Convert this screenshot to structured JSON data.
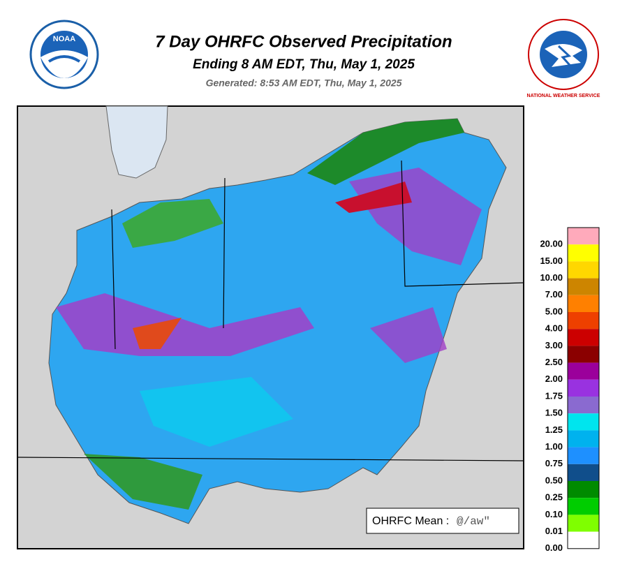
{
  "header": {
    "title": "7 Day OHRFC Observed Precipitation",
    "subtitle": "Ending 8 AM EDT, Thu, May 1, 2025",
    "generated": "Generated: 8:53 AM EDT, Thu, May 1, 2025",
    "left_logo": "NOAA",
    "right_logo": "NATIONAL WEATHER SERVICE"
  },
  "legend": {
    "labels": [
      "20.00",
      "15.00",
      "10.00",
      "7.00",
      "5.00",
      "4.00",
      "3.00",
      "2.50",
      "2.00",
      "1.75",
      "1.50",
      "1.25",
      "1.00",
      "0.75",
      "0.50",
      "0.25",
      "0.10",
      "0.01",
      "0.00"
    ],
    "colors": [
      "#ffaabb",
      "#ffff00",
      "#ffd700",
      "#cd8500",
      "#ff8000",
      "#ee4000",
      "#cc0000",
      "#8b0000",
      "#9b009b",
      "#9932e0",
      "#8a6ad0",
      "#00e5ee",
      "#00b2ee",
      "#1e90ff",
      "#104e8b",
      "#008b00",
      "#00cd00",
      "#7fff00",
      "#ffffff"
    ]
  },
  "mean_box": {
    "label": "OHRFC Mean :",
    "value": "@/aw\""
  }
}
